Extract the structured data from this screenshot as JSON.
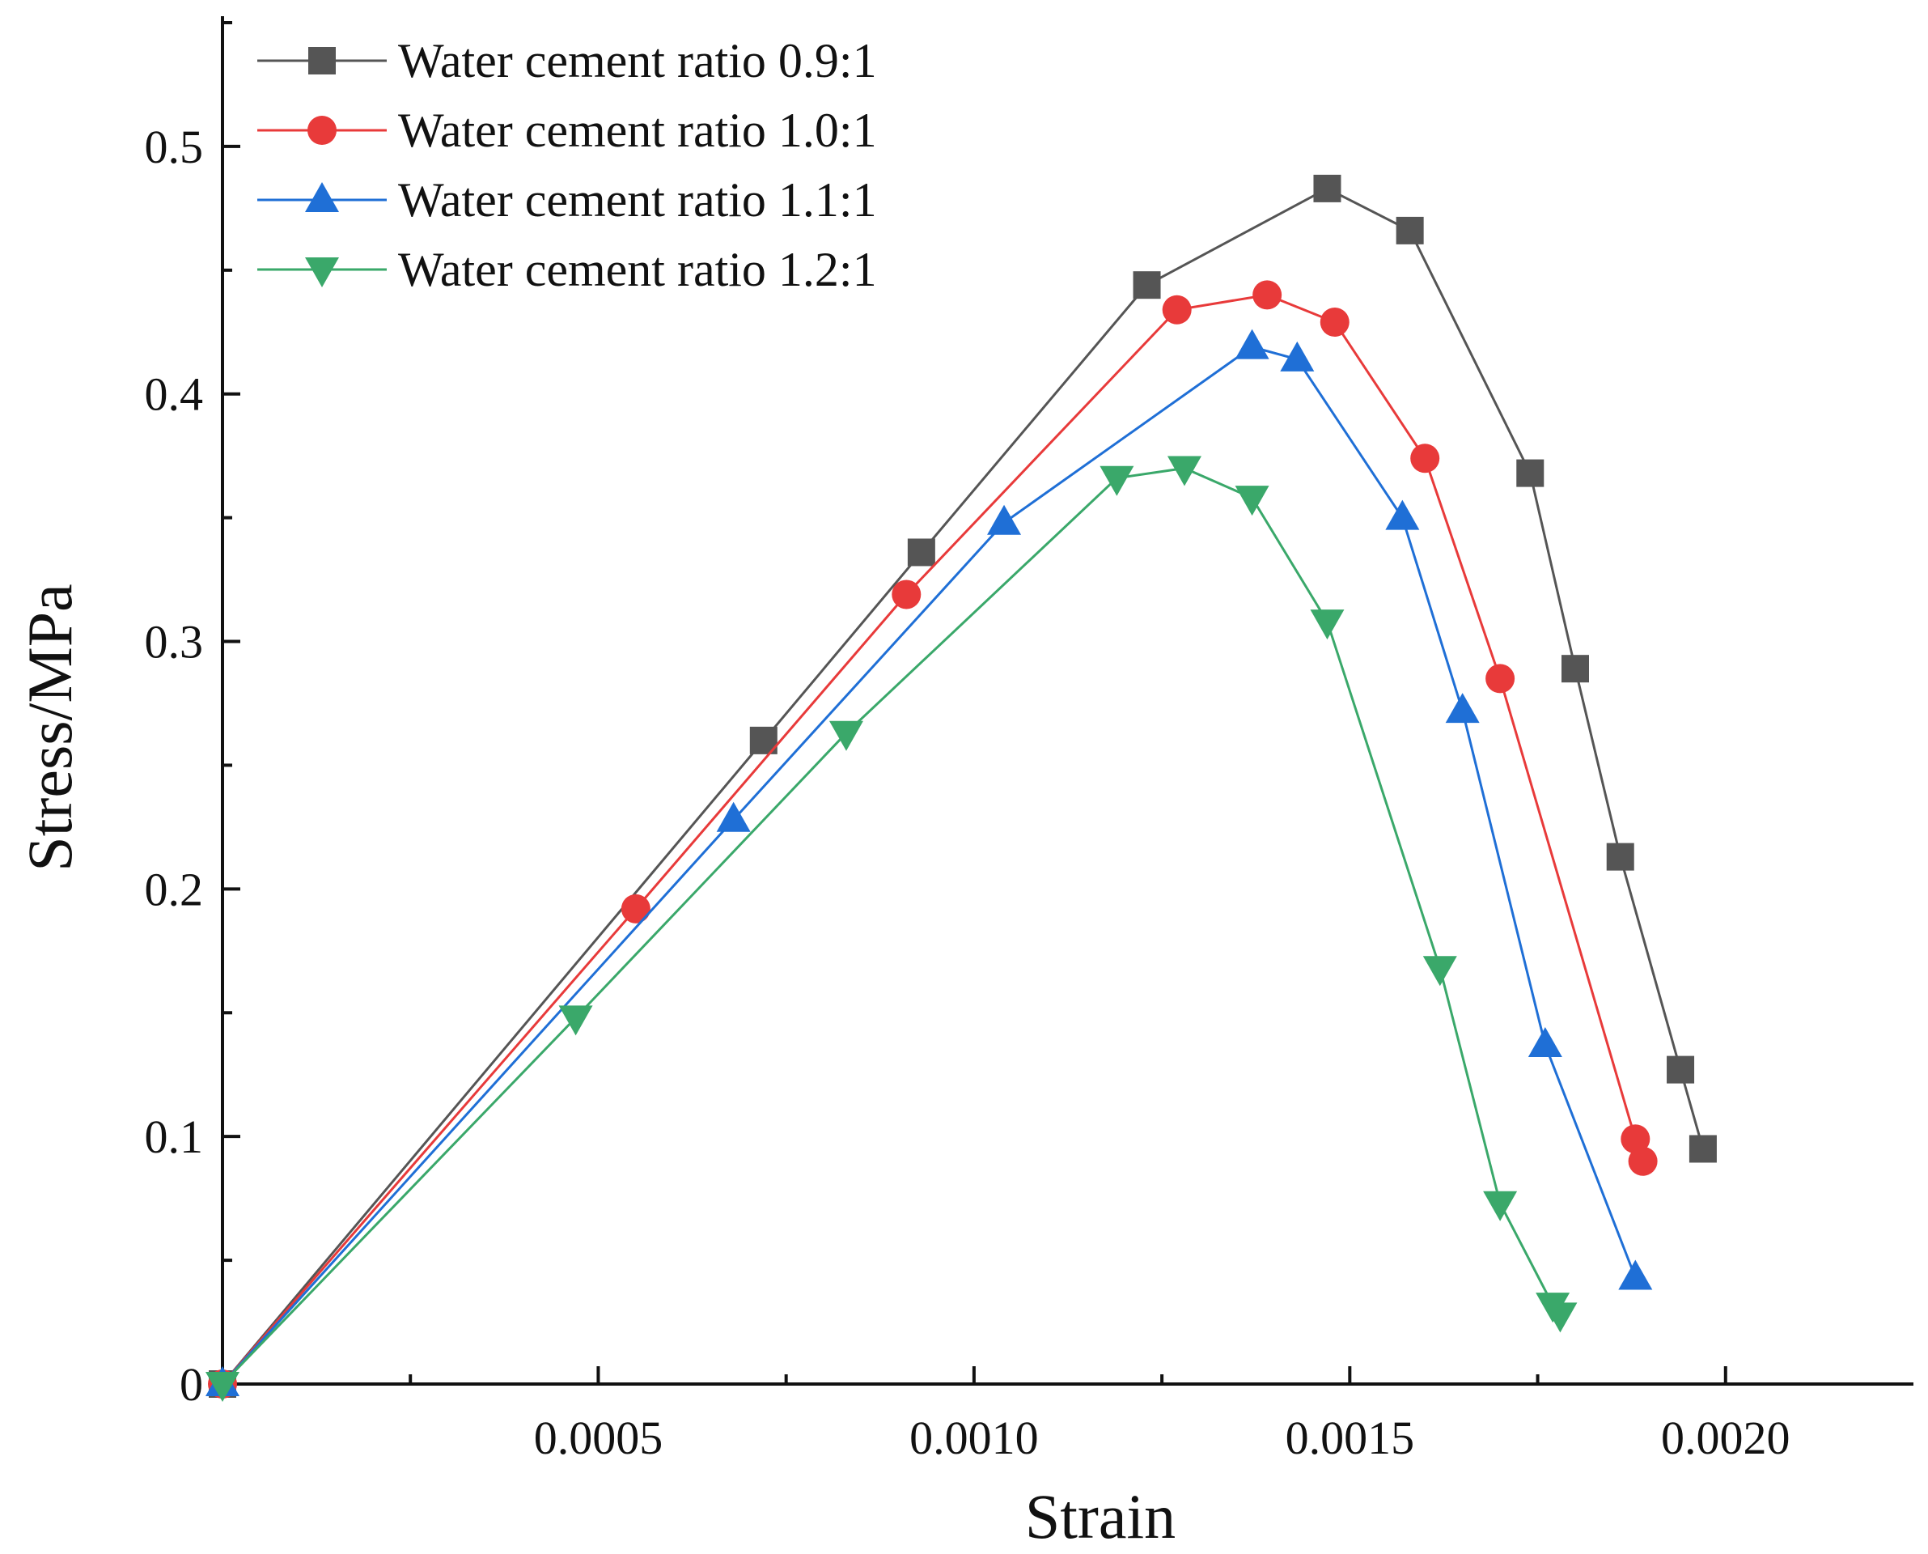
{
  "chart_data": {
    "type": "line",
    "title": "",
    "xlabel": "Strain",
    "ylabel": "Stress/MPa",
    "xlim": [
      0,
      0.00225
    ],
    "ylim": [
      0,
      0.55
    ],
    "x_ticks": [
      {
        "value": 0.0005,
        "label": "0.0005"
      },
      {
        "value": 0.001,
        "label": "0.0010"
      },
      {
        "value": 0.0015,
        "label": "0.0015"
      },
      {
        "value": 0.002,
        "label": "0.0020"
      }
    ],
    "x_minor_ticks": [
      0.00025,
      0.00075,
      0.00125,
      0.00175
    ],
    "y_ticks": [
      {
        "value": 0,
        "label": "0"
      },
      {
        "value": 0.1,
        "label": "0.1"
      },
      {
        "value": 0.2,
        "label": "0.2"
      },
      {
        "value": 0.3,
        "label": "0.3"
      },
      {
        "value": 0.4,
        "label": "0.4"
      },
      {
        "value": 0.5,
        "label": "0.5"
      }
    ],
    "y_minor_ticks": [
      0.05,
      0.15,
      0.25,
      0.35,
      0.45,
      0.55
    ],
    "legend_position": "top-left",
    "series": [
      {
        "name": "Water cement ratio 0.9:1",
        "color": "#555555",
        "marker": "square",
        "x": [
          0,
          0.00072,
          0.00093,
          0.00123,
          0.00147,
          0.00158,
          0.00174,
          0.0018,
          0.00186,
          0.00194,
          0.00197
        ],
        "y": [
          0,
          0.26,
          0.336,
          0.444,
          0.483,
          0.466,
          0.368,
          0.289,
          0.213,
          0.127,
          0.095
        ]
      },
      {
        "name": "Water cement ratio 1.0:1",
        "color": "#e83a3a",
        "marker": "circle",
        "x": [
          0,
          0.00055,
          0.00091,
          0.00127,
          0.00139,
          0.00148,
          0.0016,
          0.0017,
          0.00188,
          0.00189
        ],
        "y": [
          0,
          0.192,
          0.319,
          0.434,
          0.44,
          0.429,
          0.374,
          0.285,
          0.099,
          0.09
        ]
      },
      {
        "name": "Water cement ratio 1.1:1",
        "color": "#1f6fd6",
        "marker": "triangle-up",
        "x": [
          0,
          0.00068,
          0.00104,
          0.00137,
          0.00143,
          0.00157,
          0.00165,
          0.00176,
          0.00188
        ],
        "y": [
          0,
          0.228,
          0.348,
          0.419,
          0.414,
          0.35,
          0.272,
          0.137,
          0.043
        ]
      },
      {
        "name": "Water cement ratio 1.2:1",
        "color": "#3aa86a",
        "marker": "triangle-down",
        "x": [
          0,
          0.00047,
          0.00083,
          0.00119,
          0.00128,
          0.00137,
          0.00147,
          0.00162,
          0.0017,
          0.00177,
          0.00178
        ],
        "y": [
          0,
          0.148,
          0.263,
          0.366,
          0.37,
          0.358,
          0.308,
          0.168,
          0.073,
          0.032,
          0.028
        ]
      }
    ]
  }
}
